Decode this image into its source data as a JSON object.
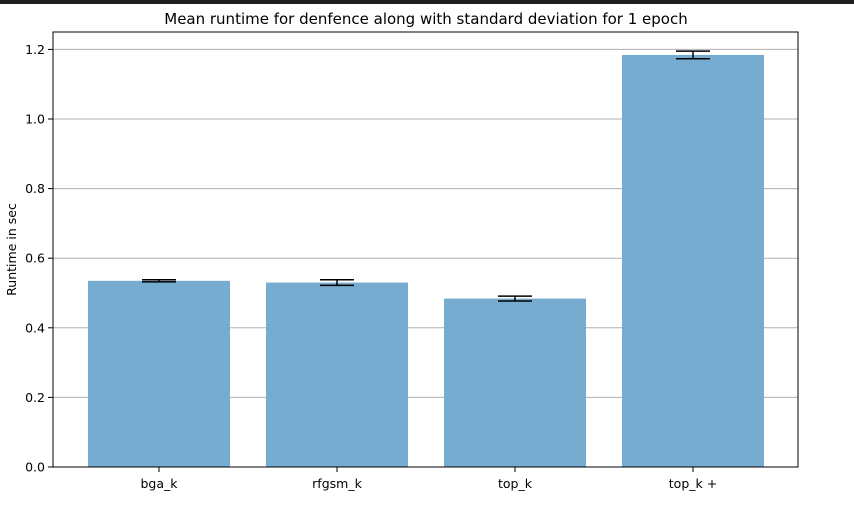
{
  "chart_data": {
    "type": "bar",
    "title": "Mean runtime for denfence along with standard deviation for 1 epoch",
    "xlabel": "",
    "ylabel": "Runtime in sec",
    "categories": [
      "bga_k",
      "rfgsm_k",
      "top_k",
      "top_k +"
    ],
    "values": [
      0.535,
      0.53,
      0.484,
      1.184
    ],
    "errors": [
      0.003,
      0.008,
      0.007,
      0.011
    ],
    "ylim": [
      0.0,
      1.25
    ],
    "yticks": [
      0.0,
      0.2,
      0.4,
      0.6,
      0.8,
      1.0,
      1.2
    ],
    "ytick_labels": [
      "0.0",
      "0.2",
      "0.4",
      "0.6",
      "0.8",
      "1.0",
      "1.2"
    ],
    "grid": "y",
    "bar_color": "#77acd1",
    "error_color": "#000000",
    "grid_color": "#b0b0b0"
  }
}
